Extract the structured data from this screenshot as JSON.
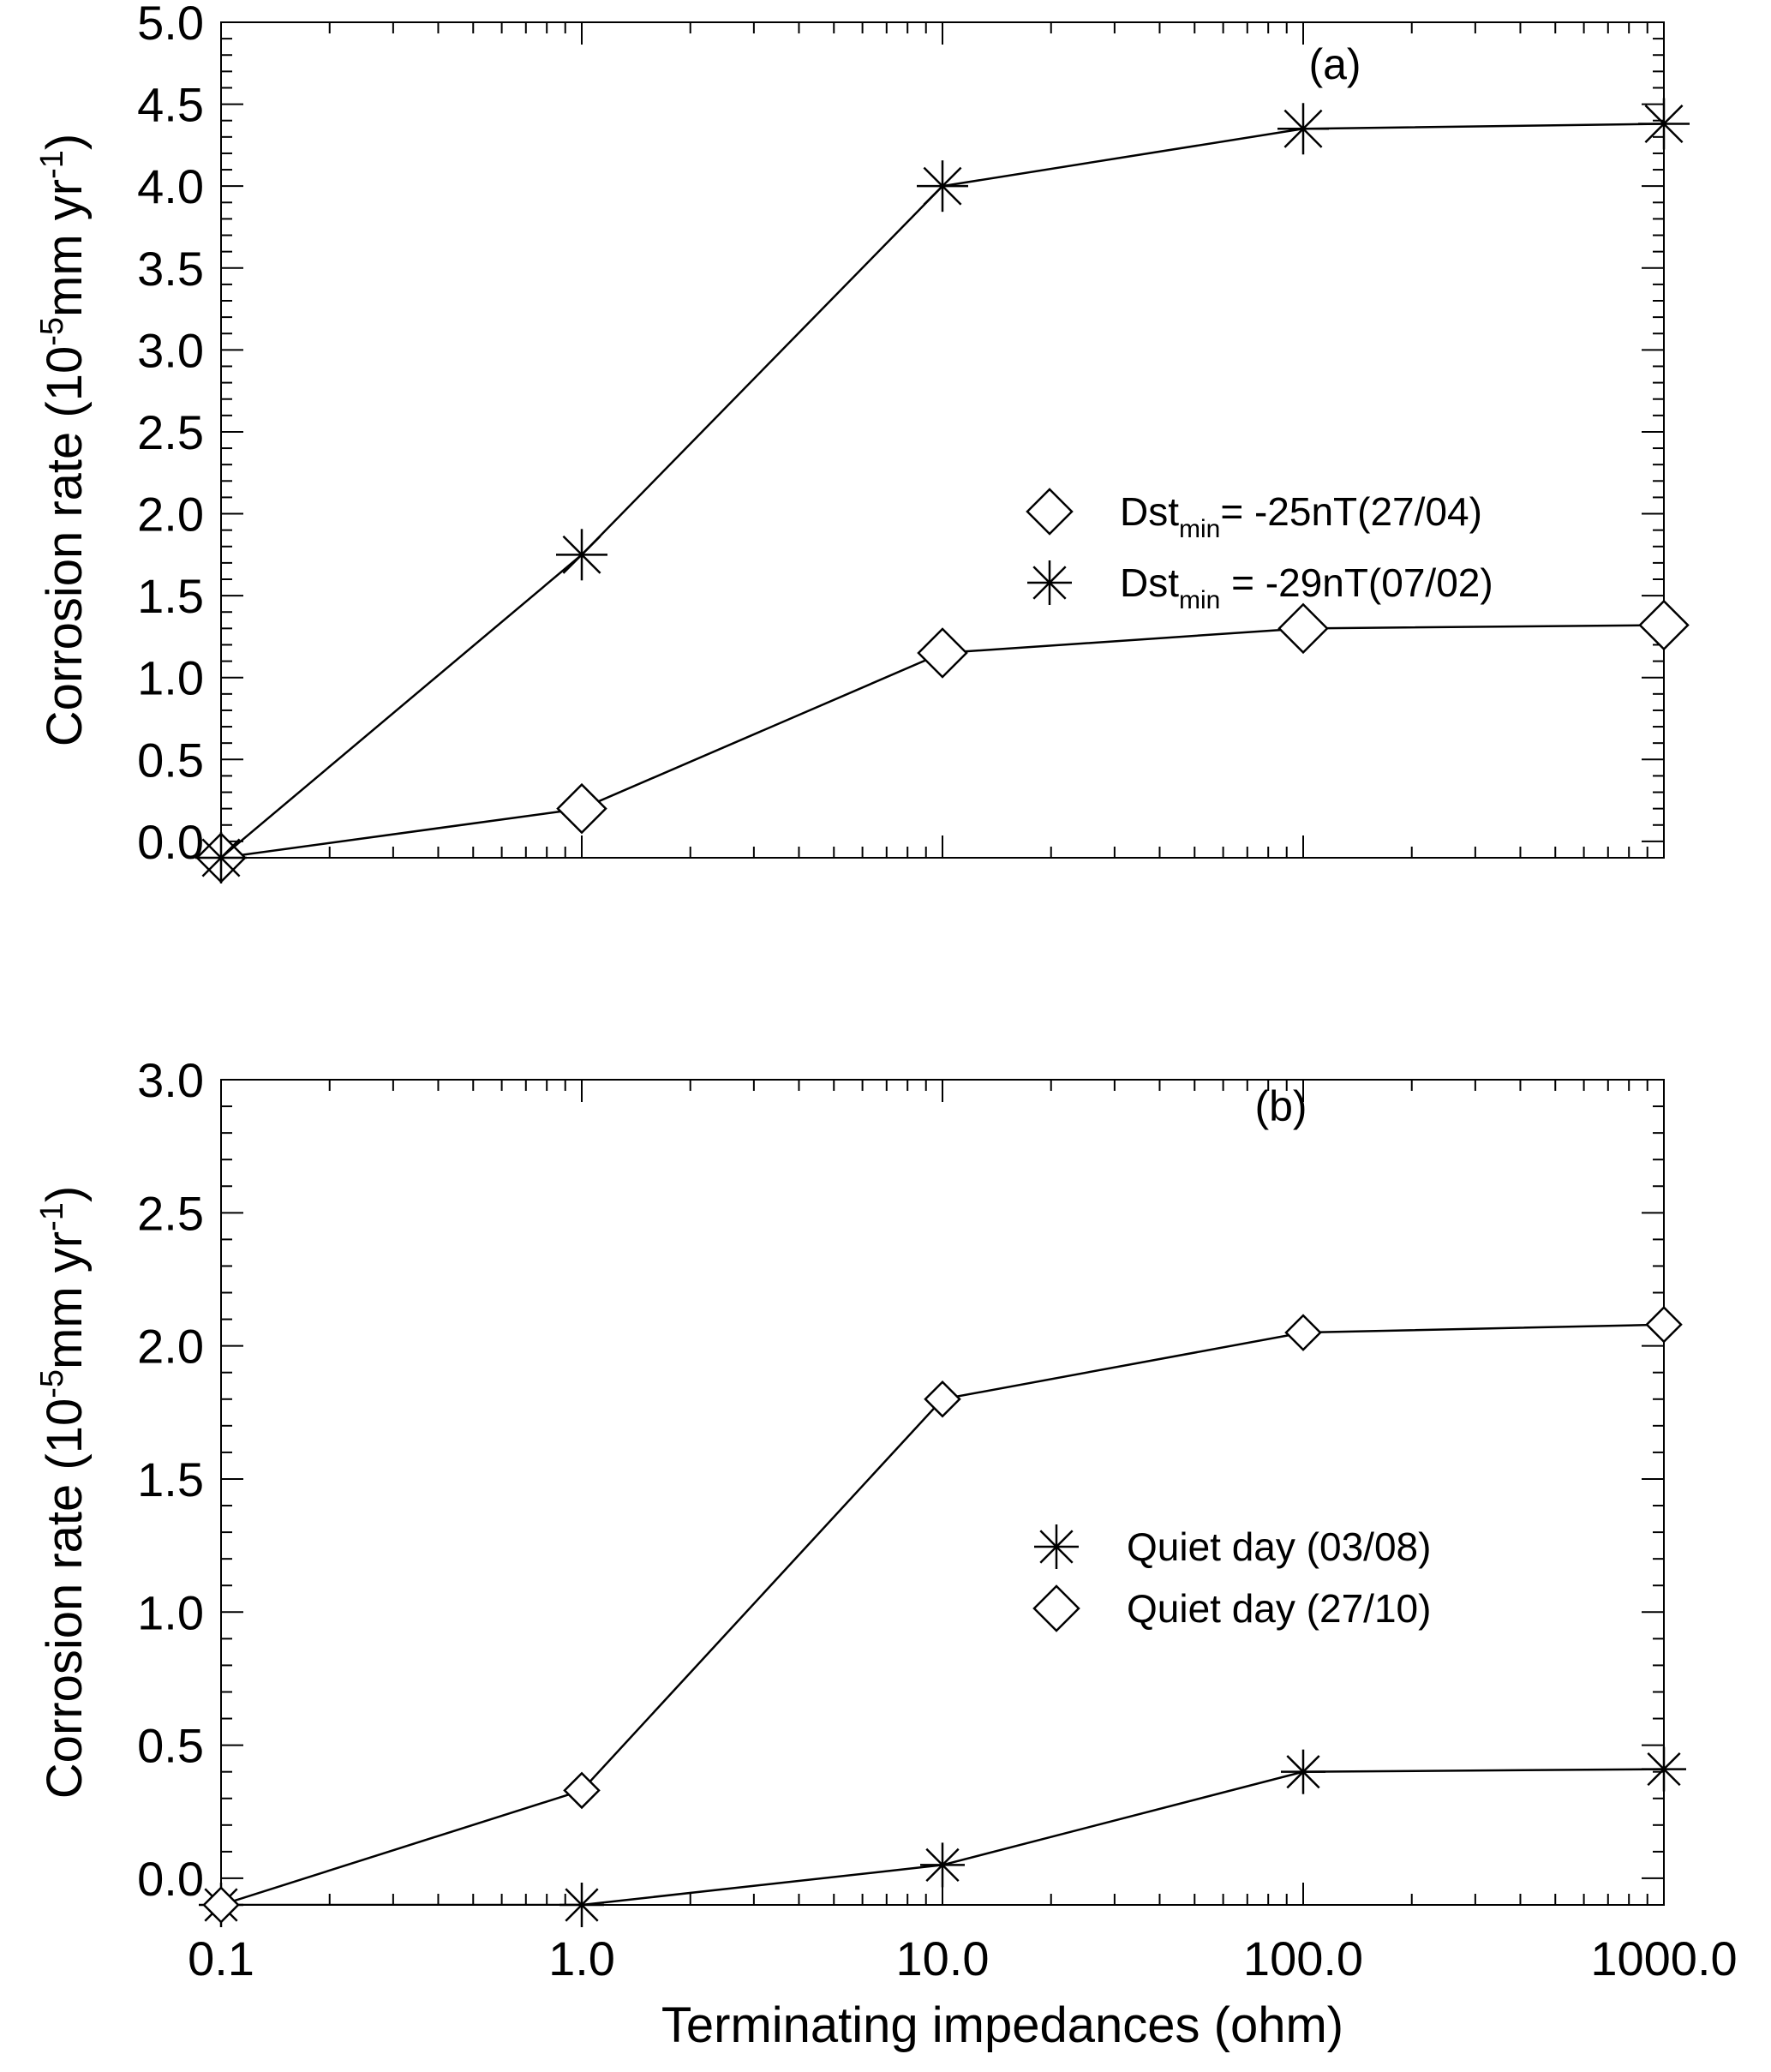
{
  "chart_data": [
    {
      "type": "line",
      "panel_label": "(a)",
      "xscale": "log",
      "x": [
        0.1,
        1.0,
        10.0,
        100.0,
        1000.0
      ],
      "xlim": [
        0.1,
        1000
      ],
      "ylim": [
        -0.1,
        5.0
      ],
      "yticks": [
        "0.0",
        "0.5",
        "1.0",
        "1.5",
        "2.0",
        "2.5",
        "3.0",
        "3.5",
        "4.0",
        "4.5",
        "5.0"
      ],
      "ylabel_main": "Corrosion rate (10",
      "ylabel_exp1": "-5",
      "ylabel_mid": "mm yr",
      "ylabel_exp2": "-1",
      "ylabel_end": ")",
      "series": [
        {
          "marker": "diamond",
          "values": [
            -0.1,
            0.2,
            1.15,
            1.3,
            1.32
          ],
          "legend": {
            "prefix": "Dst",
            "sub": "min",
            "suffix": "= -25nT(27/04)"
          }
        },
        {
          "marker": "asterisk",
          "values": [
            -0.1,
            1.75,
            4.0,
            4.35,
            4.38
          ],
          "legend": {
            "prefix": "Dst",
            "sub": "min",
            "suffix": " = -29nT(07/02)"
          }
        }
      ]
    },
    {
      "type": "line",
      "panel_label": "(b)",
      "xscale": "log",
      "x": [
        0.1,
        1.0,
        10.0,
        100.0,
        1000.0
      ],
      "xlim": [
        0.1,
        1000
      ],
      "ylim": [
        -0.1,
        3.0
      ],
      "yticks": [
        "0.0",
        "0.5",
        "1.0",
        "1.5",
        "2.0",
        "2.5",
        "3.0"
      ],
      "xticks": [
        "0.1",
        "1.0",
        "10.0",
        "100.0",
        "1000.0"
      ],
      "xlabel": "Terminating impedances (ohm)",
      "ylabel_main": "Corrosion rate (10",
      "ylabel_exp1": "-5",
      "ylabel_mid": "mm yr",
      "ylabel_exp2": "-1",
      "ylabel_end": ")",
      "series": [
        {
          "marker": "asterisk",
          "values": [
            -0.1,
            -0.1,
            0.05,
            0.4,
            0.41
          ],
          "legend": {
            "prefix": "Quiet day (03/08)",
            "sub": "",
            "suffix": ""
          }
        },
        {
          "marker": "diamond",
          "values": [
            -0.1,
            0.33,
            1.8,
            2.05,
            2.08
          ],
          "legend": {
            "prefix": "Quiet day (27/10)",
            "sub": "",
            "suffix": ""
          }
        }
      ]
    }
  ]
}
